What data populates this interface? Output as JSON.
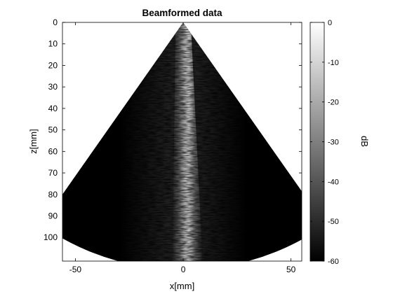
{
  "chart_data": {
    "type": "heatmap",
    "title": "Beamformed data",
    "xlabel": "x[mm]",
    "ylabel": "z[mm]",
    "xlim": [
      -56,
      55
    ],
    "ylim": [
      0,
      111
    ],
    "y_reversed": true,
    "xticks": [
      -50,
      0,
      50
    ],
    "xtick_labels": [
      "-50",
      "0",
      "50"
    ],
    "yticks": [
      0,
      10,
      20,
      30,
      40,
      50,
      60,
      70,
      80,
      90,
      100
    ],
    "ytick_labels": [
      "0",
      "10",
      "20",
      "30",
      "40",
      "50",
      "60",
      "70",
      "80",
      "90",
      "100"
    ],
    "grid": false,
    "colormap": "gray",
    "sector": {
      "apex": [
        0,
        0
      ],
      "half_angle_deg": 35,
      "depth_max": 115
    },
    "bright_band": {
      "description_values": "vertical bright speckle column, roughly centered",
      "x_center": 0,
      "x_center_at_bottom": 2,
      "half_width": 7
    },
    "colorbar": {
      "label": "dB",
      "range": [
        -60,
        0
      ],
      "ticks": [
        0,
        -10,
        -20,
        -30,
        -40,
        -50,
        -60
      ],
      "tick_labels": [
        "0",
        "-10",
        "-20",
        "-30",
        "-40",
        "-50",
        "-60"
      ]
    }
  }
}
